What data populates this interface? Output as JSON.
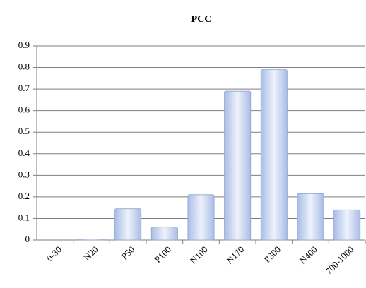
{
  "chart_data": {
    "type": "bar",
    "title": "PCC",
    "categories": [
      "0-30",
      "N20",
      "P50",
      "P100",
      "N100",
      "N170",
      "P300",
      "N400",
      "700-1000"
    ],
    "values": [
      0,
      0.005,
      0.145,
      0.06,
      0.21,
      0.69,
      0.79,
      0.215,
      0.14
    ],
    "color": "#a9bde6",
    "ylim": [
      0,
      0.9
    ],
    "yticks": [
      0,
      0.1,
      0.2,
      0.3,
      0.4,
      0.5,
      0.6,
      0.7,
      0.8,
      0.9
    ],
    "grid": true
  }
}
